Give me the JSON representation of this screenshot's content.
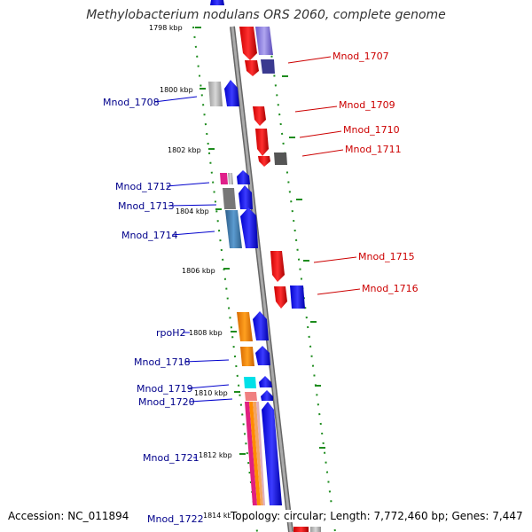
{
  "title": "Methylobacterium nodulans ORS 2060, complete genome",
  "footer": {
    "accession": "Accession: NC_011894",
    "topology": "Topology: circular; Length: 7,772,460 bp; Genes: 7,447"
  },
  "ticks": [
    "1798 kbp",
    "1800 kbp",
    "1802 kbp",
    "1804 kbp",
    "1806 kbp",
    "1808 kbp",
    "1810 kbp",
    "1812 kbp",
    "1814 kbp"
  ],
  "genes_left": [
    "Mnod_1708",
    "Mnod_1712",
    "Mnod_1713",
    "Mnod_1714",
    "rpoH2",
    "Mnod_1718",
    "Mnod_1719",
    "Mnod_1720",
    "Mnod_1721",
    "Mnod_1722"
  ],
  "genes_right": [
    "Mnod_1707",
    "Mnod_1709",
    "Mnod_1710",
    "Mnod_1711",
    "Mnod_1715",
    "Mnod_1716"
  ],
  "colors": {
    "forward": "#0000ee",
    "reverse": "#ee0000",
    "backbone": "#888888",
    "tick_dots": "#228b22",
    "label_left": "#00008b",
    "label_right": "#cc0000"
  }
}
